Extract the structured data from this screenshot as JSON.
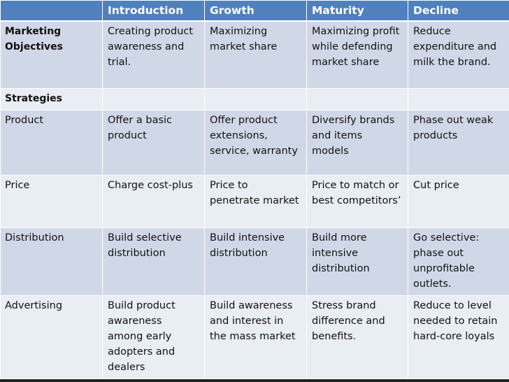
{
  "columns": [
    "",
    "Introduction",
    "Growth",
    "Maturity",
    "Decline"
  ],
  "rows": [
    {
      "label": "Marketing\nObjectives",
      "bold": true,
      "cells": [
        "Creating product\nawareness and\ntrial.",
        "Maximizing\nmarket share",
        "Maximizing profit\nwhile defending\nmarket share",
        "Reduce\nexpenditure and\nmilk the brand."
      ]
    },
    {
      "label": "Strategies",
      "bold": true,
      "cells": [
        "",
        "",
        "",
        ""
      ]
    },
    {
      "label": "Product",
      "bold": false,
      "cells": [
        "Offer a basic\nproduct",
        "Offer product\nextensions,\nservice, warranty",
        "Diversify brands\nand items\nmodels",
        "Phase out weak\nproducts"
      ]
    },
    {
      "label": "Price",
      "bold": false,
      "cells": [
        "Charge cost-plus",
        "Price to\npenetrate market",
        "Price to match or\nbest competitors’",
        "Cut price"
      ]
    },
    {
      "label": "Distribution",
      "bold": false,
      "cells": [
        "Build selective\ndistribution",
        "Build intensive\ndistribution",
        "Build more\nintensive\ndistribution",
        "Go selective:\nphase out\nunprofitable\noutlets."
      ]
    },
    {
      "label": "Advertising",
      "bold": false,
      "cells": [
        "Build product\nawareness\namong early\nadopters and\ndealers",
        "Build awareness\nand interest in\nthe mass market",
        "Stress brand\ndifference and\nbenefits.",
        "Reduce to level\nneeded to retain\nhard-core loyals"
      ]
    }
  ]
}
